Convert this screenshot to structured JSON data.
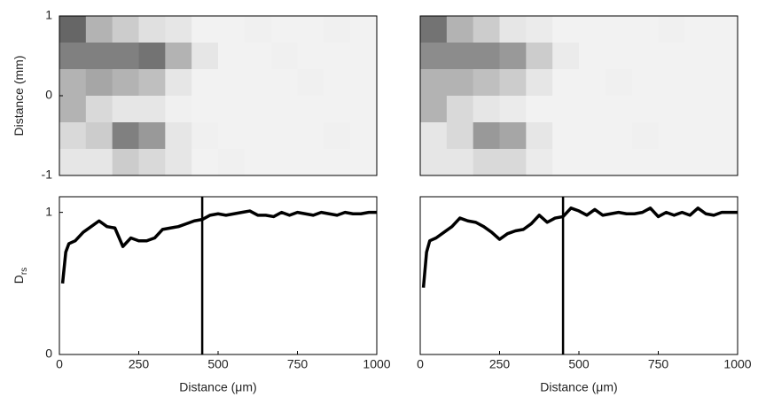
{
  "chart_data": [
    {
      "type": "heatmap",
      "ylabel": "Distance (mm)",
      "xlim": [
        0,
        1000
      ],
      "ylim": [
        -1,
        1
      ],
      "yticks": [
        1,
        0,
        -1
      ],
      "z": [
        [
          0.6,
          0.3,
          0.2,
          0.12,
          0.1,
          0.05,
          0.05,
          0.06,
          0.05,
          0.05,
          0.06,
          0.05
        ],
        [
          0.5,
          0.5,
          0.5,
          0.55,
          0.3,
          0.1,
          0.05,
          0.05,
          0.06,
          0.05,
          0.05,
          0.05
        ],
        [
          0.3,
          0.35,
          0.3,
          0.25,
          0.1,
          0.05,
          0.05,
          0.05,
          0.05,
          0.06,
          0.05,
          0.05
        ],
        [
          0.3,
          0.15,
          0.1,
          0.1,
          0.06,
          0.05,
          0.05,
          0.05,
          0.05,
          0.05,
          0.05,
          0.05
        ],
        [
          0.15,
          0.2,
          0.5,
          0.4,
          0.1,
          0.06,
          0.05,
          0.05,
          0.05,
          0.05,
          0.06,
          0.05
        ],
        [
          0.1,
          0.1,
          0.2,
          0.15,
          0.1,
          0.05,
          0.06,
          0.05,
          0.05,
          0.05,
          0.05,
          0.05
        ]
      ]
    },
    {
      "type": "heatmap",
      "xlim": [
        0,
        1000
      ],
      "ylim": [
        -1,
        1
      ],
      "z": [
        [
          0.55,
          0.3,
          0.2,
          0.1,
          0.08,
          0.05,
          0.05,
          0.05,
          0.05,
          0.06,
          0.05,
          0.05
        ],
        [
          0.45,
          0.45,
          0.45,
          0.4,
          0.2,
          0.08,
          0.05,
          0.05,
          0.05,
          0.05,
          0.05,
          0.05
        ],
        [
          0.3,
          0.3,
          0.25,
          0.2,
          0.1,
          0.05,
          0.05,
          0.06,
          0.05,
          0.05,
          0.05,
          0.05
        ],
        [
          0.3,
          0.15,
          0.1,
          0.08,
          0.05,
          0.05,
          0.05,
          0.05,
          0.05,
          0.05,
          0.05,
          0.05
        ],
        [
          0.1,
          0.15,
          0.4,
          0.35,
          0.1,
          0.05,
          0.05,
          0.05,
          0.06,
          0.05,
          0.05,
          0.05
        ],
        [
          0.1,
          0.1,
          0.15,
          0.15,
          0.08,
          0.05,
          0.05,
          0.05,
          0.05,
          0.05,
          0.05,
          0.05
        ]
      ]
    },
    {
      "type": "line",
      "ylabel": "D",
      "ylabel_sub": "rs",
      "xlabel": "Distance (μm)",
      "xlim": [
        0,
        1000
      ],
      "ylim": [
        0,
        1.11
      ],
      "xticks": [
        0,
        250,
        500,
        750,
        1000
      ],
      "yticks": [
        0,
        1
      ],
      "vline": 450,
      "color": "#000000",
      "x": [
        10,
        20,
        30,
        50,
        75,
        100,
        125,
        150,
        175,
        200,
        225,
        250,
        275,
        300,
        325,
        350,
        375,
        400,
        425,
        450,
        475,
        500,
        525,
        550,
        575,
        600,
        625,
        650,
        675,
        700,
        725,
        750,
        775,
        800,
        825,
        850,
        875,
        900,
        925,
        950,
        975,
        1000
      ],
      "values": [
        0.5,
        0.72,
        0.78,
        0.8,
        0.86,
        0.9,
        0.94,
        0.9,
        0.89,
        0.76,
        0.82,
        0.8,
        0.8,
        0.82,
        0.88,
        0.89,
        0.9,
        0.92,
        0.94,
        0.95,
        0.98,
        0.99,
        0.98,
        0.99,
        1.0,
        1.01,
        0.98,
        0.98,
        0.97,
        1.0,
        0.98,
        1.0,
        0.99,
        0.98,
        1.0,
        0.99,
        0.98,
        1.0,
        0.99,
        0.99,
        1.0,
        1.0
      ]
    },
    {
      "type": "line",
      "xlabel": "Distance (μm)",
      "xlim": [
        0,
        1000
      ],
      "ylim": [
        0,
        1.11
      ],
      "xticks": [
        0,
        250,
        500,
        750,
        1000
      ],
      "vline": 450,
      "color": "#000000",
      "x": [
        10,
        20,
        30,
        50,
        75,
        100,
        125,
        150,
        175,
        200,
        225,
        250,
        275,
        300,
        325,
        350,
        375,
        400,
        425,
        450,
        475,
        500,
        525,
        550,
        575,
        600,
        625,
        650,
        675,
        700,
        725,
        750,
        775,
        800,
        825,
        850,
        875,
        900,
        925,
        950,
        975,
        1000
      ],
      "values": [
        0.47,
        0.72,
        0.8,
        0.82,
        0.86,
        0.9,
        0.96,
        0.94,
        0.93,
        0.9,
        0.86,
        0.81,
        0.85,
        0.87,
        0.88,
        0.92,
        0.98,
        0.93,
        0.96,
        0.97,
        1.03,
        1.01,
        0.98,
        1.02,
        0.98,
        0.99,
        1.0,
        0.99,
        0.99,
        1.0,
        1.03,
        0.97,
        1.0,
        0.98,
        1.0,
        0.98,
        1.03,
        0.99,
        0.98,
        1.0,
        1.0,
        1.0
      ]
    }
  ]
}
